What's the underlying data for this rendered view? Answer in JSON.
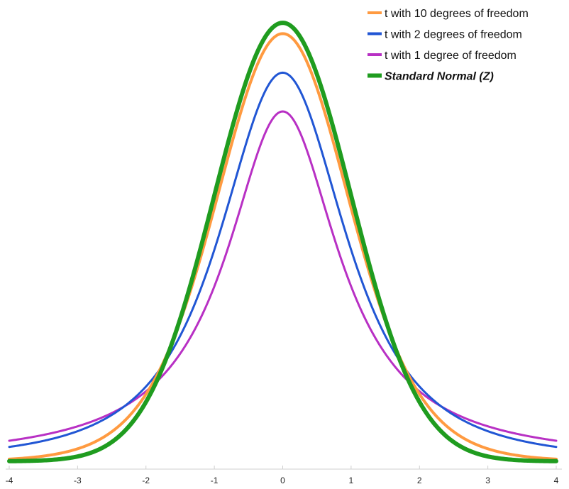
{
  "chart_data": {
    "type": "line",
    "title": "",
    "xlabel": "",
    "ylabel": "",
    "xlim": [
      -4,
      4
    ],
    "ylim": [
      0,
      0.41
    ],
    "x_ticks": [
      -4,
      -3,
      -2,
      -1,
      0,
      1,
      2,
      3,
      4
    ],
    "x_tick_labels": [
      "-4",
      "-3",
      "-2",
      "-1",
      "0",
      "1",
      "2",
      "3",
      "4"
    ],
    "grid": false,
    "legend_position": "top-right",
    "sample_x": [
      -4,
      -3.5,
      -3,
      -2.5,
      -2,
      -1.5,
      -1,
      -0.5,
      0,
      0.5,
      1,
      1.5,
      2,
      2.5,
      3,
      3.5,
      4
    ],
    "series": [
      {
        "name": "t with 10 degrees of freedom",
        "df": 10,
        "color": "#ff9a40",
        "stroke": 4,
        "emphasis": false,
        "values": [
          0.0028,
          0.0063,
          0.0114,
          0.0269,
          0.0611,
          0.1274,
          0.2304,
          0.34,
          0.3891,
          0.34,
          0.2304,
          0.1274,
          0.0611,
          0.0269,
          0.0114,
          0.0063,
          0.0028
        ]
      },
      {
        "name": "t with 2 degrees of freedom",
        "df": 2,
        "color": "#2156d4",
        "stroke": 3,
        "emphasis": false,
        "values": [
          0.0131,
          0.0179,
          0.0273,
          0.0422,
          0.068,
          0.1136,
          0.1925,
          0.2963,
          0.3536,
          0.2963,
          0.1925,
          0.1136,
          0.068,
          0.0422,
          0.0273,
          0.0179,
          0.0131
        ]
      },
      {
        "name": "t with 1 degree of freedom",
        "df": 1,
        "color": "#b830c4",
        "stroke": 3,
        "emphasis": false,
        "values": [
          0.0187,
          0.024,
          0.0318,
          0.0439,
          0.0637,
          0.0979,
          0.1592,
          0.2546,
          0.3183,
          0.2546,
          0.1592,
          0.0979,
          0.0637,
          0.0439,
          0.0318,
          0.024,
          0.0187
        ]
      },
      {
        "name": "Standard Normal (Z)",
        "df": null,
        "color": "#1f9c1f",
        "stroke": 6,
        "emphasis": true,
        "values": [
          0.0001,
          0.0009,
          0.0044,
          0.0175,
          0.054,
          0.1295,
          0.242,
          0.3521,
          0.3989,
          0.3521,
          0.242,
          0.1295,
          0.054,
          0.0175,
          0.0044,
          0.0009,
          0.0001
        ]
      }
    ]
  }
}
